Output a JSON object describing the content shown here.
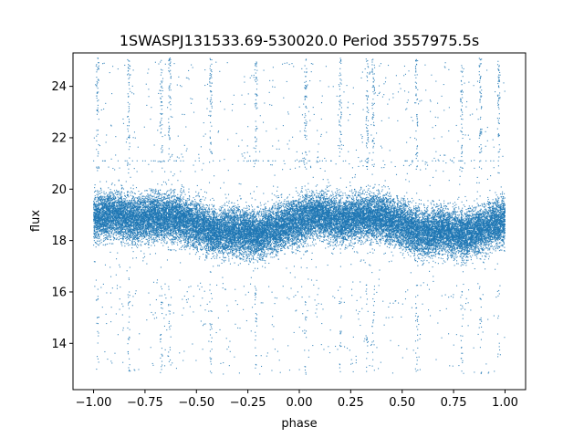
{
  "chart_data": {
    "type": "scatter",
    "title": "1SWASPJ131533.69-530020.0 Period 3557975.5s",
    "xlabel": "phase",
    "ylabel": "flux",
    "xlim": [
      -1.1,
      1.1
    ],
    "ylim": [
      12.2,
      25.3
    ],
    "x_ticks": [
      -1.0,
      -0.75,
      -0.5,
      -0.25,
      0.0,
      0.25,
      0.5,
      0.75,
      1.0
    ],
    "x_tick_labels": [
      "−1.00",
      "−0.75",
      "−0.50",
      "−0.25",
      "0.00",
      "0.25",
      "0.50",
      "0.75",
      "1.00"
    ],
    "y_ticks": [
      14,
      16,
      18,
      20,
      22,
      24
    ],
    "y_tick_labels": [
      "14",
      "16",
      "18",
      "20",
      "22",
      "24"
    ],
    "grid": false,
    "marker_color": "#1f77b4",
    "series": [
      {
        "point_count": 30000,
        "phase_range": [
          -1.0,
          1.0
        ],
        "core_flux_range": [
          16.5,
          20.8
        ],
        "outlier_flux_range": [
          12.8,
          25.1
        ],
        "binned_mean_flux": {
          "phase": [
            -1.0,
            -0.9,
            -0.8,
            -0.7,
            -0.6,
            -0.5,
            -0.4,
            -0.3,
            -0.2,
            -0.1,
            0.0,
            0.1,
            0.2,
            0.3,
            0.4,
            0.5,
            0.6,
            0.7,
            0.8,
            0.9,
            1.0
          ],
          "flux": [
            18.9,
            19.0,
            18.8,
            18.9,
            18.9,
            18.6,
            18.3,
            18.4,
            18.2,
            18.5,
            18.8,
            19.0,
            18.8,
            18.9,
            18.9,
            18.6,
            18.3,
            18.4,
            18.2,
            18.5,
            18.8
          ]
        },
        "outlier_streak_phases": [
          -0.98,
          -0.83,
          -0.67,
          -0.63,
          -0.43,
          -0.21,
          0.03,
          0.2,
          0.33,
          0.36,
          0.57,
          0.79,
          0.88,
          0.97
        ]
      }
    ]
  }
}
